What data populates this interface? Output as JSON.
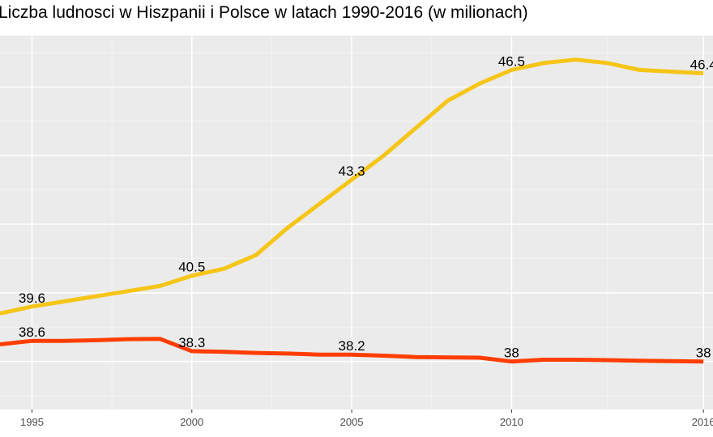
{
  "chart_data": {
    "type": "line",
    "title": "Liczba ludnosci w Hiszpanii i Polsce w latach 1990-2016 (w milionach)",
    "xlabel": "",
    "ylabel": "",
    "xlim": [
      1994.0,
      2016.3
    ],
    "ylim": [
      36.6,
      47.5
    ],
    "x_ticks": [
      "1995",
      "2000",
      "2005",
      "2010",
      "2016"
    ],
    "grid": true,
    "series": [
      {
        "color": "#f5c518",
        "x": [
          1994,
          1995,
          1996,
          1997,
          1998,
          1999,
          2000,
          2001,
          2002,
          2003,
          2004,
          2005,
          2006,
          2007,
          2008,
          2009,
          2010,
          2011,
          2012,
          2013,
          2014,
          2015,
          2016
        ],
        "y": [
          39.4,
          39.6,
          39.75,
          39.9,
          40.05,
          40.2,
          40.5,
          40.7,
          41.1,
          41.9,
          42.6,
          43.3,
          44.0,
          44.8,
          45.6,
          46.1,
          46.5,
          46.7,
          46.8,
          46.7,
          46.5,
          46.45,
          46.4
        ],
        "labels": [
          {
            "x": 1995,
            "y": 39.6,
            "text": "39.6"
          },
          {
            "x": 2000,
            "y": 40.5,
            "text": "40.5"
          },
          {
            "x": 2005,
            "y": 43.3,
            "text": "43.3"
          },
          {
            "x": 2010,
            "y": 46.5,
            "text": "46.5"
          },
          {
            "x": 2016,
            "y": 46.4,
            "text": "46.4"
          }
        ]
      },
      {
        "color": "#ff3d00",
        "x": [
          1994,
          1995,
          1996,
          1997,
          1998,
          1999,
          2000,
          2001,
          2002,
          2003,
          2004,
          2005,
          2006,
          2007,
          2008,
          2009,
          2010,
          2011,
          2012,
          2013,
          2014,
          2015,
          2016
        ],
        "y": [
          38.5,
          38.6,
          38.6,
          38.62,
          38.65,
          38.66,
          38.3,
          38.28,
          38.25,
          38.23,
          38.2,
          38.2,
          38.17,
          38.13,
          38.12,
          38.11,
          38.0,
          38.05,
          38.05,
          38.04,
          38.02,
          38.01,
          38.0
        ],
        "labels": [
          {
            "x": 1995,
            "y": 38.6,
            "text": "38.6"
          },
          {
            "x": 2000,
            "y": 38.3,
            "text": "38.3"
          },
          {
            "x": 2005,
            "y": 38.2,
            "text": "38.2"
          },
          {
            "x": 2010,
            "y": 38.0,
            "text": "38"
          },
          {
            "x": 2016,
            "y": 38.0,
            "text": "38"
          }
        ]
      }
    ]
  }
}
